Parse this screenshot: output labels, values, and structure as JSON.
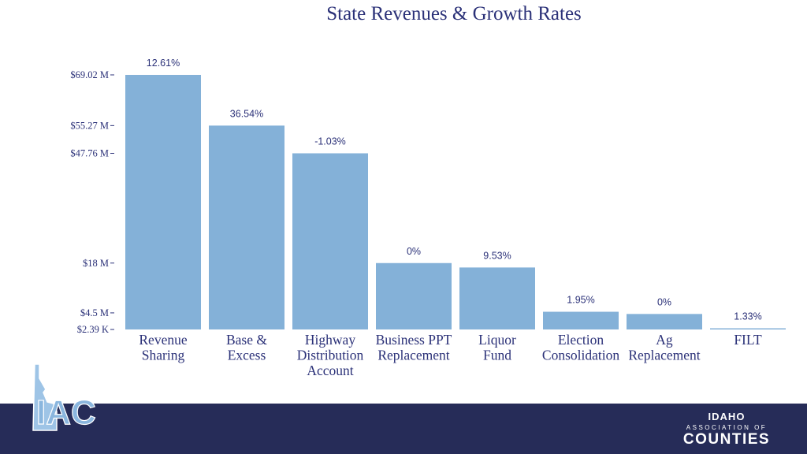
{
  "chart_data": {
    "type": "bar",
    "title": "State Revenues & Growth Rates",
    "categories": [
      [
        "Revenue",
        "Sharing"
      ],
      [
        "Base &",
        "Excess"
      ],
      [
        "Highway",
        "Distribution",
        "Account"
      ],
      [
        "Business PPT",
        "Replacement"
      ],
      [
        "Liquor",
        "Fund"
      ],
      [
        "Election",
        "Consolidation"
      ],
      [
        "Ag",
        "Replacement"
      ],
      [
        "FILT"
      ]
    ],
    "values": [
      69.02,
      55.27,
      47.76,
      18.0,
      16.8,
      4.8,
      4.2,
      0.00239
    ],
    "data_labels": [
      "12.61%",
      "36.54%",
      "-1.03%",
      "0%",
      "9.53%",
      "1.95%",
      "0%",
      "1.33%"
    ],
    "yticks": [
      {
        "value": 69.02,
        "label": "$69.02 M"
      },
      {
        "value": 55.27,
        "label": "$55.27 M"
      },
      {
        "value": 47.76,
        "label": "$47.76 M"
      },
      {
        "value": 18.0,
        "label": "$18 M"
      },
      {
        "value": 4.5,
        "label": "$4.5 M"
      },
      {
        "value": 0.00239,
        "label": "$2.39 K"
      }
    ],
    "ylim": [
      0,
      69.02
    ],
    "bar_color": "#84b1d8"
  },
  "org": {
    "line1": "IDAHO",
    "line2": "ASSOCIATION OF",
    "line3": "COUNTIES"
  },
  "logo_text": "IAC"
}
